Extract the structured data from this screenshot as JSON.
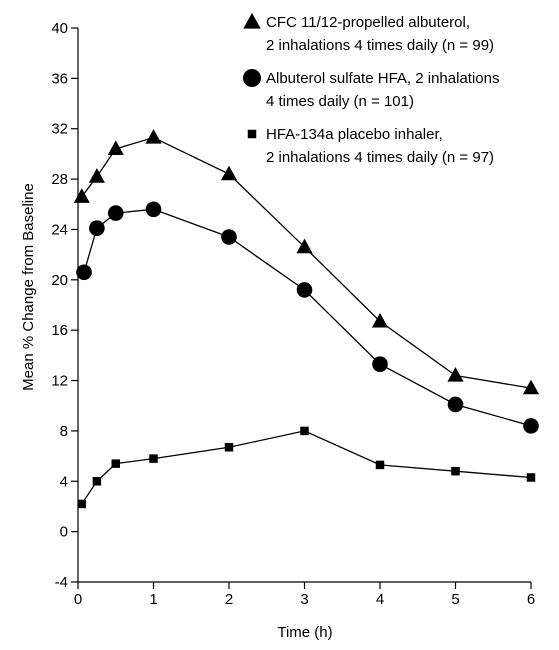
{
  "chart_data": {
    "type": "line",
    "xlabel": "Time (h)",
    "ylabel": "Mean % Change from Baseline",
    "xlim": [
      0,
      6
    ],
    "ylim": [
      -4,
      40
    ],
    "x_ticks": [
      0,
      1,
      2,
      3,
      4,
      5,
      6
    ],
    "x_tick_labels": [
      "0",
      "1",
      "2",
      "3",
      "4",
      "5",
      "6"
    ],
    "y_ticks": [
      -4,
      0,
      4,
      8,
      12,
      16,
      20,
      24,
      28,
      32,
      36,
      40
    ],
    "y_tick_labels": [
      "-4",
      "0",
      "4",
      "8",
      "12",
      "16",
      "20",
      "24",
      "28",
      "32",
      "36",
      "40"
    ],
    "grid": false,
    "legend_position": "top-right",
    "series": [
      {
        "name": "CFC 11/12-propelled albuterol, 2 inhalations 4 times daily (n = 99)",
        "legend_lines": [
          "CFC 11/12-propelled albuterol,",
          "2 inhalations 4 times daily (n = 99)"
        ],
        "marker": "triangle",
        "x": [
          0.05,
          0.25,
          0.5,
          1,
          2,
          3,
          4,
          5,
          6
        ],
        "values": [
          26.6,
          28.2,
          30.4,
          31.3,
          28.4,
          22.6,
          16.7,
          12.4,
          11.4
        ]
      },
      {
        "name": "Albuterol sulfate HFA, 2 inhalations 4 times daily (n = 101)",
        "legend_lines": [
          "Albuterol sulfate HFA, 2 inhalations",
          "4 times daily (n = 101)"
        ],
        "marker": "circle",
        "x": [
          0.08,
          0.25,
          0.5,
          1,
          2,
          3,
          4,
          5,
          6
        ],
        "values": [
          20.6,
          24.1,
          25.3,
          25.6,
          23.4,
          19.2,
          13.3,
          10.1,
          8.4
        ]
      },
      {
        "name": "HFA-134a placebo inhaler, 2 inhalations 4 times daily (n = 97)",
        "legend_lines": [
          "HFA-134a placebo inhaler,",
          "2 inhalations 4 times daily (n = 97)"
        ],
        "marker": "square",
        "x": [
          0.05,
          0.25,
          0.5,
          1,
          2,
          3,
          4,
          5,
          6
        ],
        "values": [
          2.2,
          4.0,
          5.4,
          5.8,
          6.7,
          8.0,
          5.3,
          4.8,
          4.3
        ]
      }
    ]
  }
}
